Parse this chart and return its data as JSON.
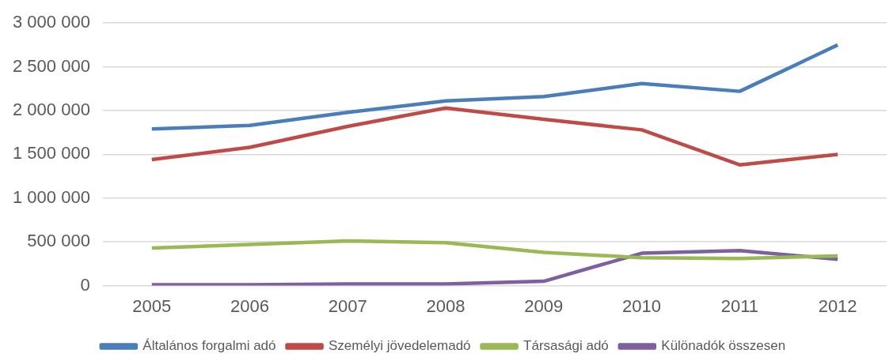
{
  "chart_data": {
    "type": "line",
    "categories": [
      "2005",
      "2006",
      "2007",
      "2008",
      "2009",
      "2010",
      "2011",
      "2012"
    ],
    "series": [
      {
        "name": "Általános forgalmi adó",
        "color": "#4a7ebb",
        "values": [
          1790000,
          1830000,
          1980000,
          2110000,
          2160000,
          2310000,
          2220000,
          2750000
        ]
      },
      {
        "name": "Személyi jövedelemadó",
        "color": "#be4b48",
        "values": [
          1440000,
          1580000,
          1820000,
          2030000,
          1900000,
          1780000,
          1380000,
          1500000
        ]
      },
      {
        "name": "Társasági adó",
        "color": "#98b954",
        "values": [
          430000,
          470000,
          510000,
          490000,
          380000,
          320000,
          310000,
          340000
        ]
      },
      {
        "name": "Különadók összesen",
        "color": "#7d60a0",
        "values": [
          10000,
          10000,
          20000,
          20000,
          50000,
          370000,
          400000,
          300000
        ]
      }
    ],
    "ylim": [
      0,
      3000000
    ],
    "yticks": [
      {
        "value": 0,
        "label": "0"
      },
      {
        "value": 500000,
        "label": "500 000"
      },
      {
        "value": 1000000,
        "label": "1 000 000"
      },
      {
        "value": 1500000,
        "label": "1 500 000"
      },
      {
        "value": 2000000,
        "label": "2 000 000"
      },
      {
        "value": 2500000,
        "label": "2 500 000"
      },
      {
        "value": 3000000,
        "label": "3 000 000"
      }
    ],
    "grid": "y",
    "legend": "bottom",
    "marker": "none",
    "line_style": "solid"
  }
}
